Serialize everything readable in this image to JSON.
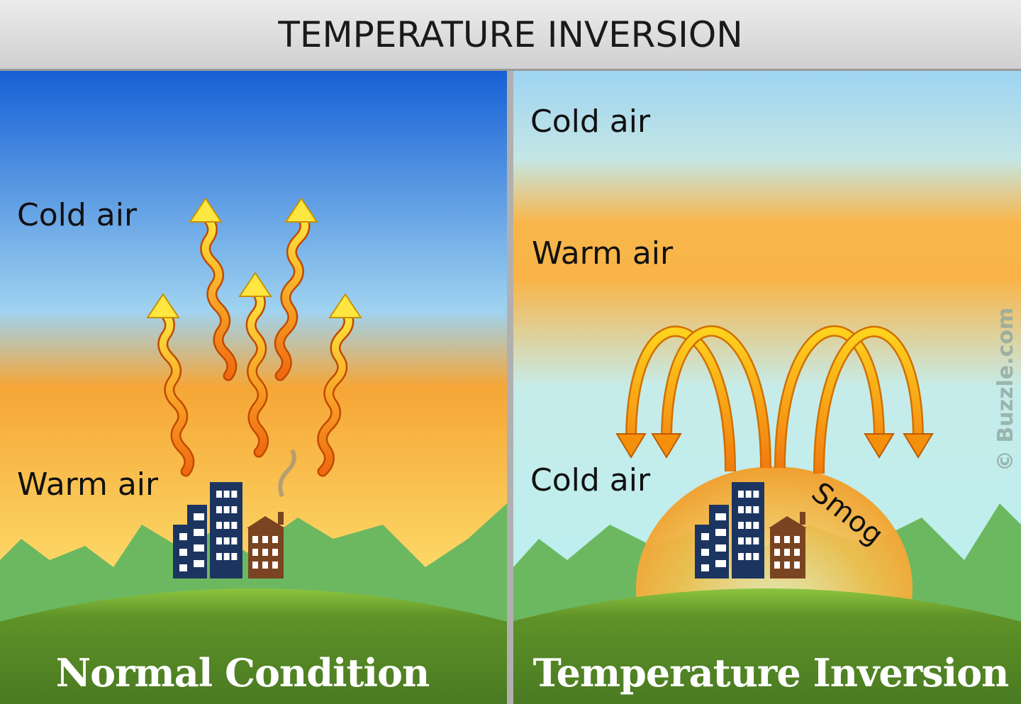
{
  "title": "TEMPERATURE INVERSION",
  "left_panel": {
    "caption": "Normal Condition",
    "labels": {
      "top": "Cold air",
      "bottom": "Warm air"
    }
  },
  "right_panel": {
    "caption": "Temperature Inversion",
    "labels": {
      "top": "Cold air",
      "middle": "Warm air",
      "bottom": "Cold air",
      "smog": "Smog"
    }
  },
  "watermark": "© Buzzle.com",
  "colors": {
    "building": "#1c3560",
    "house": "#7a4422",
    "hill": "#5a8a2a",
    "mountains": "#6cb860",
    "smog": "#f2a030"
  }
}
